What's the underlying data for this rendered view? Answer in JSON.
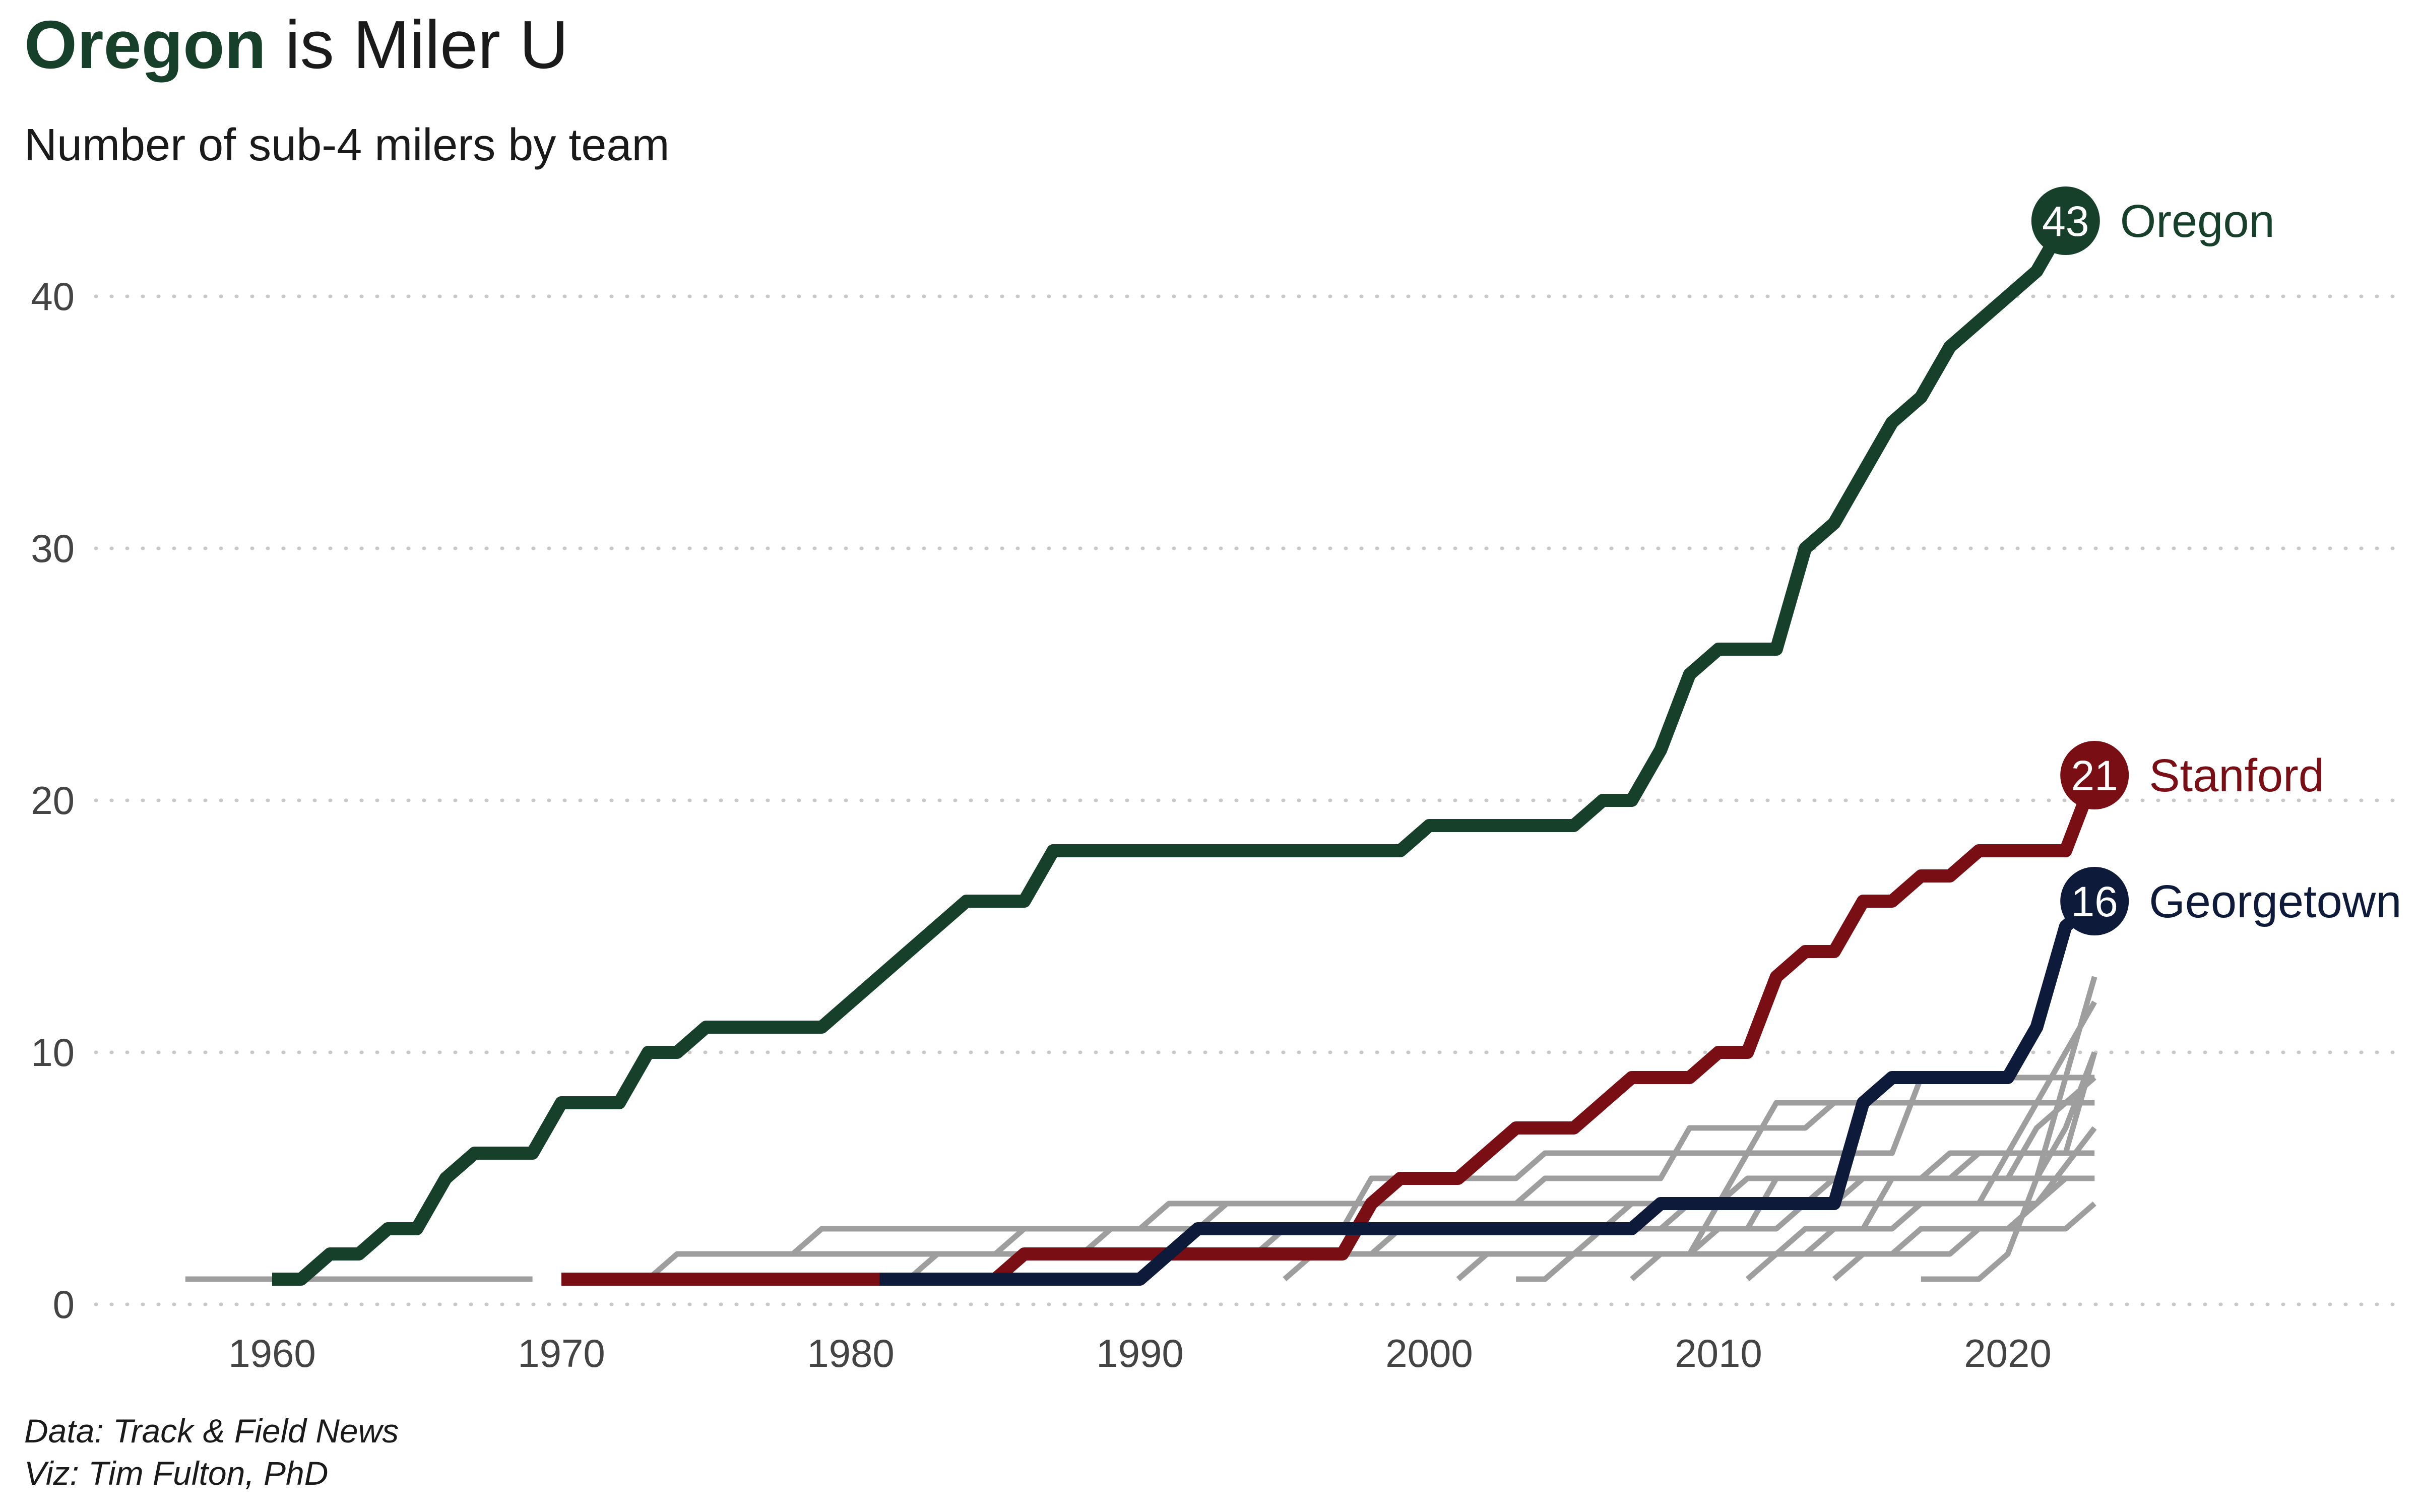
{
  "title": {
    "team": "Oregon",
    "rest": " is Miler U"
  },
  "subtitle": "Number of sub-4 milers by team",
  "caption": {
    "line1": "Data: Track & Field News",
    "line2": "Viz: Tim Fulton, PhD"
  },
  "colors": {
    "oregon": "#17402a",
    "stanford": "#7a0e15",
    "georgetown": "#0d1a3a",
    "other": "#9e9e9e",
    "grid": "#c8c8c8"
  },
  "chart_data": {
    "type": "line",
    "xlim": [
      1955,
      2030
    ],
    "ylim": [
      0,
      45
    ],
    "x_ticks": [
      1960,
      1970,
      1980,
      1990,
      2000,
      2010,
      2020
    ],
    "y_ticks": [
      0,
      10,
      20,
      30,
      40
    ],
    "grid": "horizontal dotted",
    "highlighted": [
      {
        "name": "Oregon",
        "end_value": "43",
        "color": "#17402a",
        "points": [
          [
            1960,
            1
          ],
          [
            1961,
            1
          ],
          [
            1962,
            2
          ],
          [
            1963,
            2
          ],
          [
            1964,
            3
          ],
          [
            1965,
            3
          ],
          [
            1966,
            5
          ],
          [
            1967,
            6
          ],
          [
            1968,
            6
          ],
          [
            1969,
            6
          ],
          [
            1970,
            8
          ],
          [
            1971,
            8
          ],
          [
            1972,
            8
          ],
          [
            1973,
            10
          ],
          [
            1974,
            10
          ],
          [
            1975,
            11
          ],
          [
            1976,
            11
          ],
          [
            1977,
            11
          ],
          [
            1978,
            11
          ],
          [
            1979,
            11
          ],
          [
            1984,
            16
          ],
          [
            1986,
            16
          ],
          [
            1987,
            18
          ],
          [
            1999,
            18
          ],
          [
            2000,
            19
          ],
          [
            2005,
            19
          ],
          [
            2006,
            20
          ],
          [
            2007,
            20
          ],
          [
            2008,
            22
          ],
          [
            2009,
            25
          ],
          [
            2010,
            26
          ],
          [
            2011,
            26
          ],
          [
            2012,
            26
          ],
          [
            2013,
            30
          ],
          [
            2014,
            31
          ],
          [
            2015,
            33
          ],
          [
            2016,
            35
          ],
          [
            2017,
            36
          ],
          [
            2018,
            38
          ],
          [
            2021,
            41
          ],
          [
            2022,
            43
          ]
        ]
      },
      {
        "name": "Stanford",
        "end_value": "21",
        "color": "#7a0e15",
        "points": [
          [
            1970,
            1
          ],
          [
            1985,
            1
          ],
          [
            1986,
            2
          ],
          [
            1997,
            2
          ],
          [
            1998,
            4
          ],
          [
            1999,
            5
          ],
          [
            2001,
            5
          ],
          [
            2002,
            6
          ],
          [
            2003,
            7
          ],
          [
            2005,
            7
          ],
          [
            2006,
            8
          ],
          [
            2007,
            9
          ],
          [
            2009,
            9
          ],
          [
            2010,
            10
          ],
          [
            2011,
            10
          ],
          [
            2012,
            13
          ],
          [
            2013,
            14
          ],
          [
            2014,
            14
          ],
          [
            2015,
            16
          ],
          [
            2016,
            16
          ],
          [
            2017,
            17
          ],
          [
            2018,
            17
          ],
          [
            2019,
            18
          ],
          [
            2022,
            18
          ],
          [
            2023,
            21
          ]
        ]
      },
      {
        "name": "Georgetown",
        "end_value": "16",
        "color": "#0d1a3a",
        "points": [
          [
            1981,
            1
          ],
          [
            1990,
            1
          ],
          [
            1991,
            2
          ],
          [
            1992,
            3
          ],
          [
            2007,
            3
          ],
          [
            2008,
            4
          ],
          [
            2014,
            4
          ],
          [
            2015,
            8
          ],
          [
            2016,
            9
          ],
          [
            2020,
            9
          ],
          [
            2021,
            11
          ],
          [
            2022,
            15
          ],
          [
            2023,
            16
          ]
        ]
      }
    ],
    "others": [
      [
        [
          1957,
          1
        ],
        [
          1969,
          1
        ]
      ],
      [
        [
          1973,
          1
        ],
        [
          1974,
          2
        ],
        [
          1985,
          2
        ],
        [
          1986,
          3
        ],
        [
          1997,
          3
        ],
        [
          1998,
          5
        ],
        [
          2003,
          5
        ],
        [
          2004,
          6
        ],
        [
          2011,
          6
        ],
        [
          2012,
          8
        ],
        [
          2023,
          8
        ]
      ],
      [
        [
          1978,
          2
        ],
        [
          1979,
          3
        ],
        [
          1992,
          3
        ],
        [
          1993,
          4
        ],
        [
          2010,
          4
        ],
        [
          2011,
          6
        ],
        [
          2016,
          6
        ],
        [
          2017,
          9
        ],
        [
          2023,
          9
        ]
      ],
      [
        [
          1988,
          2
        ],
        [
          1989,
          3
        ],
        [
          1990,
          3
        ],
        [
          1991,
          4
        ],
        [
          2003,
          4
        ],
        [
          2004,
          5
        ],
        [
          2008,
          5
        ],
        [
          2009,
          7
        ],
        [
          2013,
          7
        ],
        [
          2014,
          8
        ],
        [
          2023,
          8
        ]
      ],
      [
        [
          1982,
          1
        ],
        [
          1983,
          2
        ],
        [
          1994,
          2
        ],
        [
          1995,
          3
        ],
        [
          2006,
          3
        ],
        [
          2007,
          4
        ],
        [
          2014,
          4
        ],
        [
          2015,
          5
        ],
        [
          2021,
          5
        ],
        [
          2022,
          7
        ],
        [
          2023,
          10
        ]
      ],
      [
        [
          1995,
          1
        ],
        [
          1996,
          2
        ],
        [
          2005,
          2
        ],
        [
          2006,
          3
        ],
        [
          2011,
          3
        ],
        [
          2012,
          5
        ],
        [
          2017,
          5
        ],
        [
          2018,
          6
        ],
        [
          2023,
          6
        ]
      ],
      [
        [
          1998,
          2
        ],
        [
          1999,
          3
        ],
        [
          2008,
          3
        ],
        [
          2009,
          4
        ],
        [
          2013,
          4
        ],
        [
          2014,
          5
        ],
        [
          2023,
          5
        ]
      ],
      [
        [
          2001,
          1
        ],
        [
          2002,
          2
        ],
        [
          2009,
          2
        ],
        [
          2010,
          3
        ],
        [
          2012,
          3
        ],
        [
          2013,
          4
        ],
        [
          2019,
          4
        ],
        [
          2020,
          6
        ],
        [
          2021,
          8
        ],
        [
          2023,
          12
        ]
      ],
      [
        [
          2004,
          1
        ],
        [
          2005,
          2
        ],
        [
          2012,
          2
        ],
        [
          2013,
          3
        ],
        [
          2015,
          3
        ],
        [
          2016,
          5
        ],
        [
          2020,
          5
        ],
        [
          2021,
          7
        ],
        [
          2023,
          9
        ]
      ],
      [
        [
          2007,
          1
        ],
        [
          2008,
          2
        ],
        [
          2013,
          2
        ],
        [
          2014,
          3
        ],
        [
          2016,
          3
        ],
        [
          2017,
          4
        ],
        [
          2021,
          4
        ],
        [
          2022,
          5
        ],
        [
          2023,
          5
        ]
      ],
      [
        [
          2011,
          1
        ],
        [
          2012,
          2
        ],
        [
          2016,
          2
        ],
        [
          2017,
          3
        ],
        [
          2020,
          3
        ],
        [
          2021,
          4
        ],
        [
          2023,
          7
        ]
      ],
      [
        [
          2014,
          1
        ],
        [
          2015,
          2
        ],
        [
          2018,
          2
        ],
        [
          2019,
          3
        ],
        [
          2022,
          3
        ],
        [
          2023,
          4
        ]
      ],
      [
        [
          2017,
          1
        ],
        [
          2019,
          1
        ],
        [
          2020,
          2
        ],
        [
          2021,
          5
        ],
        [
          2023,
          13
        ]
      ],
      [
        [
          2003,
          1
        ],
        [
          2004,
          1
        ],
        [
          2005,
          2
        ],
        [
          2009,
          2
        ],
        [
          2010,
          4
        ],
        [
          2011,
          5
        ],
        [
          2018,
          5
        ],
        [
          2019,
          6
        ],
        [
          2022,
          6
        ],
        [
          2023,
          10
        ]
      ]
    ]
  }
}
